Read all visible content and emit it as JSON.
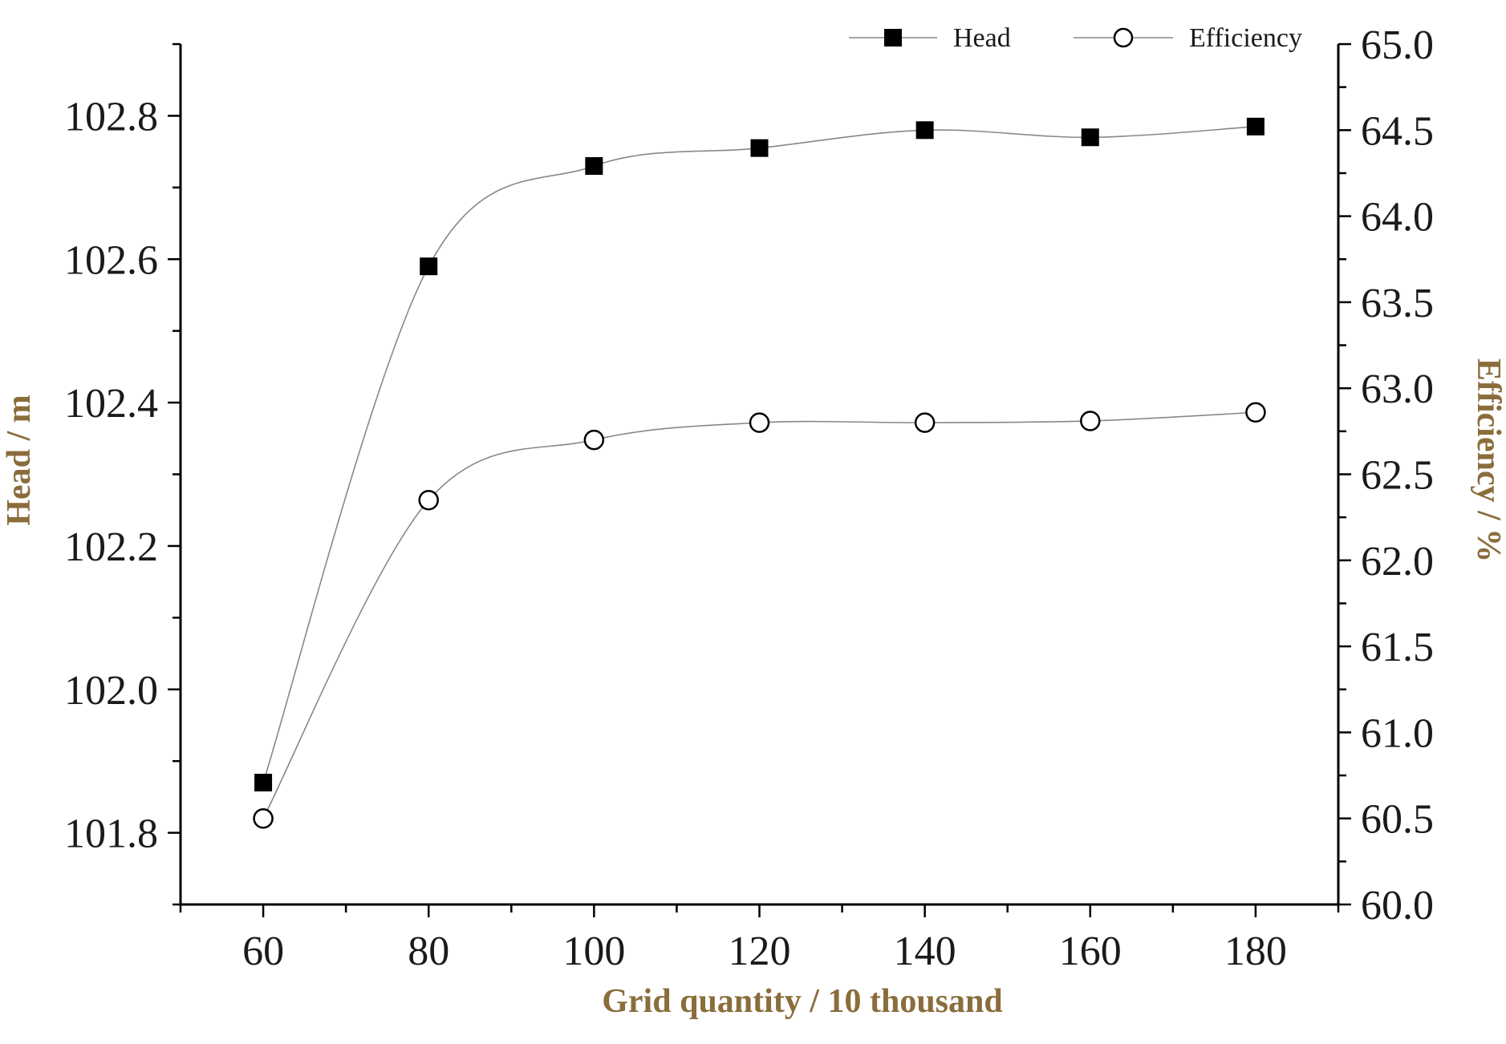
{
  "chart_data": {
    "type": "line",
    "title": "",
    "xlabel": "Grid quantity / 10 thousand",
    "ylabel": "Head / m",
    "y2label": "Efficiency / %",
    "x": [
      60,
      80,
      100,
      120,
      140,
      160,
      180
    ],
    "xlim": [
      50,
      190
    ],
    "xticks": [
      60,
      80,
      100,
      120,
      140,
      160,
      180
    ],
    "ylim": [
      101.7,
      102.9
    ],
    "yticks": [
      101.8,
      102.0,
      102.2,
      102.4,
      102.6,
      102.8
    ],
    "ytick_labels": [
      "101.8",
      "102.0",
      "102.2",
      "102.4",
      "102.6",
      "102.8"
    ],
    "y2lim": [
      60.0,
      65.0
    ],
    "y2ticks": [
      60.0,
      60.5,
      61.0,
      61.5,
      62.0,
      62.5,
      63.0,
      63.5,
      64.0,
      64.5,
      65.0
    ],
    "y2tick_labels": [
      "60.0",
      "60.5",
      "61.0",
      "61.5",
      "62.0",
      "62.5",
      "63.0",
      "63.5",
      "64.0",
      "64.5",
      "65.0"
    ],
    "series": [
      {
        "name": "Head",
        "axis": "left",
        "marker": "filled-square",
        "values": [
          101.87,
          102.59,
          102.73,
          102.755,
          102.78,
          102.77,
          102.785
        ]
      },
      {
        "name": "Efficiency",
        "axis": "right",
        "marker": "open-circle",
        "values": [
          60.5,
          62.35,
          62.7,
          62.8,
          62.8,
          62.81,
          62.86
        ]
      }
    ],
    "legend": {
      "position": "top-right",
      "entries": [
        "Head",
        "Efficiency"
      ]
    },
    "grid": false,
    "colors": {
      "axis": "#000000",
      "line": "#888888",
      "marker": "#000000",
      "axis_title": "#8a6d3b"
    }
  }
}
